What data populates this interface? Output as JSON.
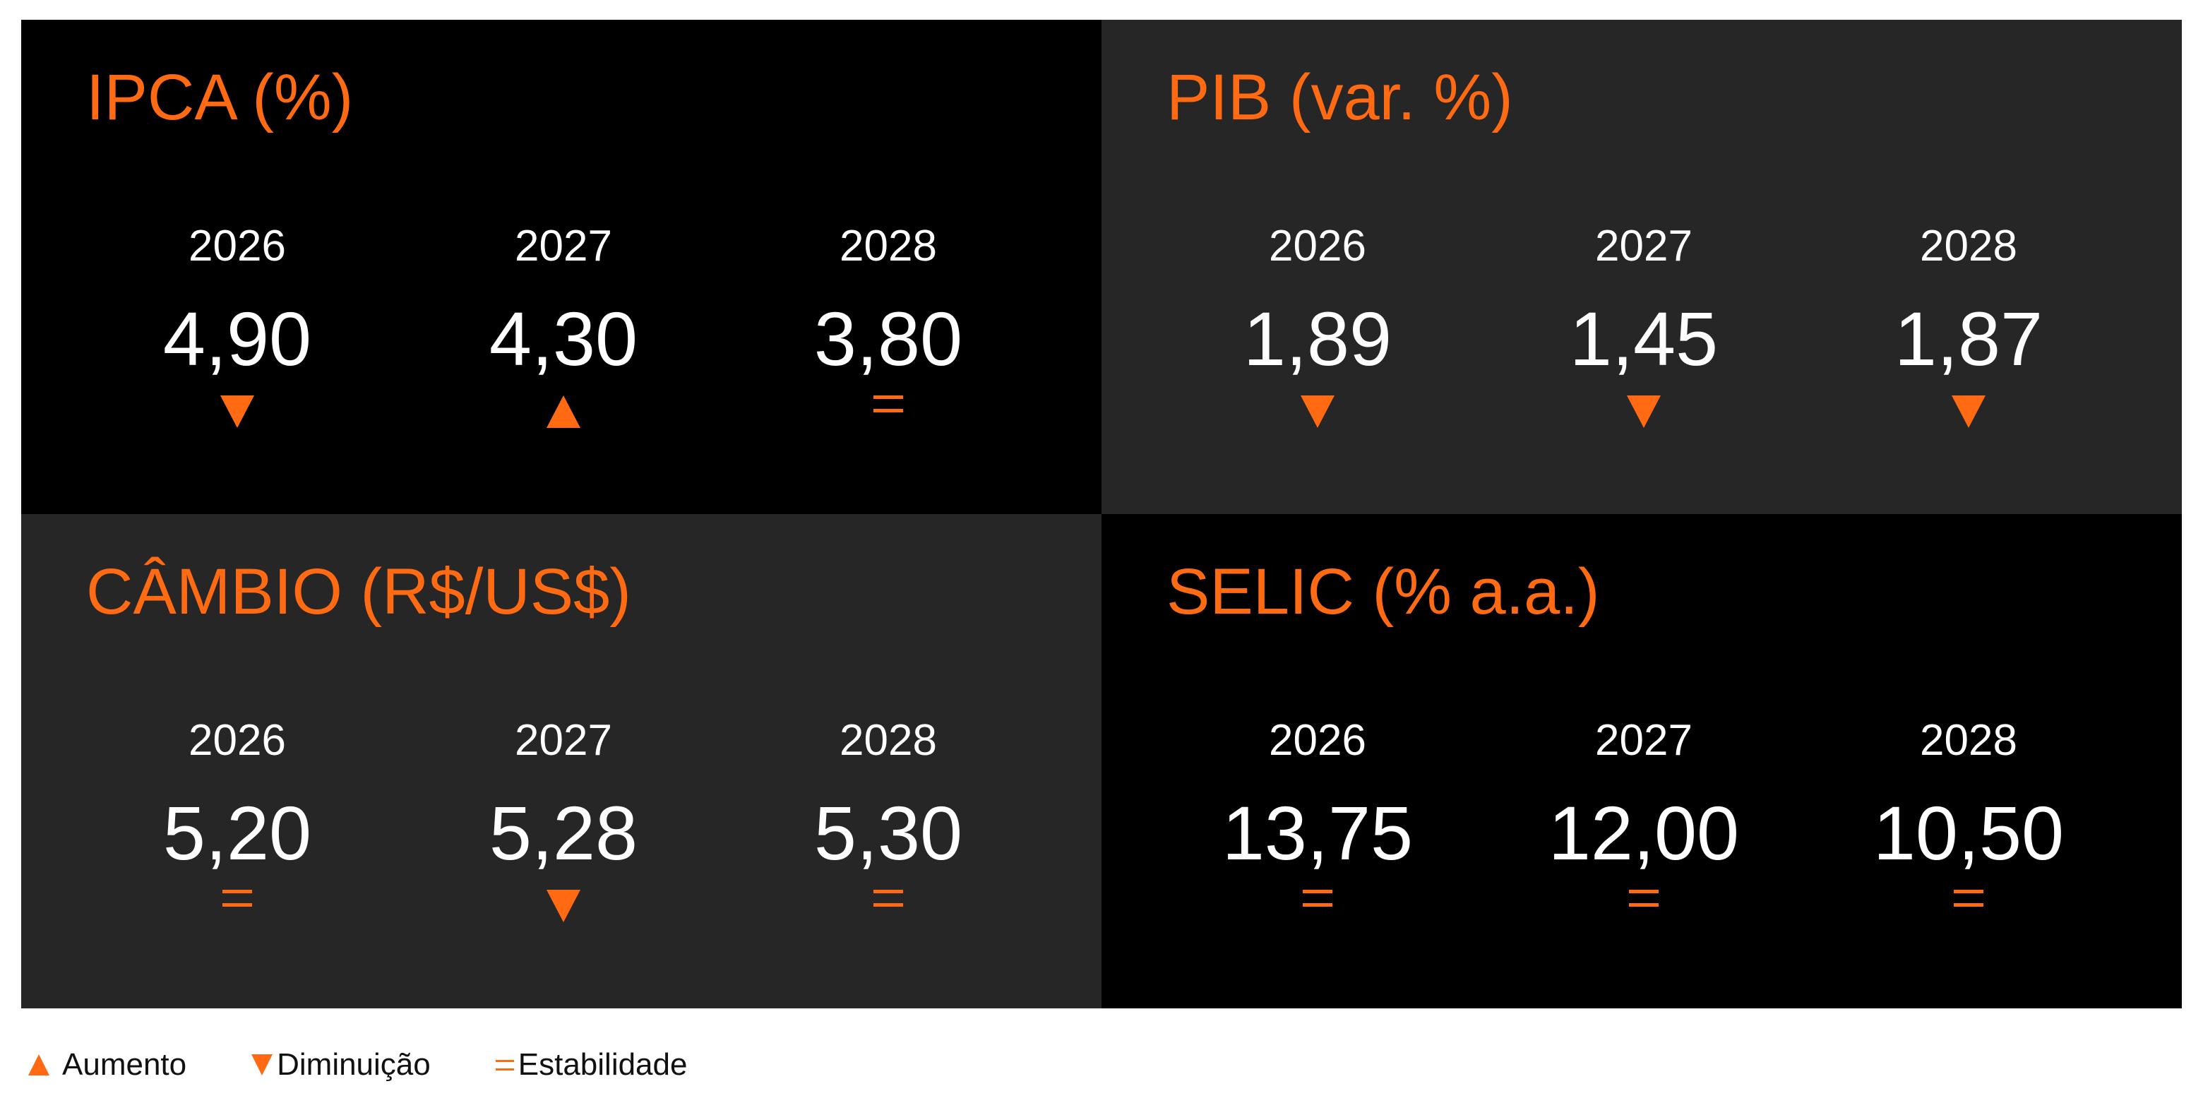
{
  "colors": {
    "accent": "#ff6a13",
    "panel_black": "#000000",
    "panel_dark": "#262626",
    "text": "#ffffff"
  },
  "panels": [
    {
      "title": "IPCA (%)",
      "columns": [
        {
          "year": "2026",
          "value": "4,90",
          "indicator": "down"
        },
        {
          "year": "2027",
          "value": "4,30",
          "indicator": "up"
        },
        {
          "year": "2028",
          "value": "3,80",
          "indicator": "equal"
        }
      ]
    },
    {
      "title": "PIB (var. %)",
      "columns": [
        {
          "year": "2026",
          "value": "1,89",
          "indicator": "down"
        },
        {
          "year": "2027",
          "value": "1,45",
          "indicator": "down"
        },
        {
          "year": "2028",
          "value": "1,87",
          "indicator": "down"
        }
      ]
    },
    {
      "title": "CÂMBIO (R$/US$)",
      "columns": [
        {
          "year": "2026",
          "value": "5,20",
          "indicator": "equal"
        },
        {
          "year": "2027",
          "value": "5,28",
          "indicator": "down"
        },
        {
          "year": "2028",
          "value": "5,30",
          "indicator": "equal"
        }
      ]
    },
    {
      "title": "SELIC (% a.a.)",
      "columns": [
        {
          "year": "2026",
          "value": "13,75",
          "indicator": "equal"
        },
        {
          "year": "2027",
          "value": "12,00",
          "indicator": "equal"
        },
        {
          "year": "2028",
          "value": "10,50",
          "indicator": "equal"
        }
      ]
    }
  ],
  "legend": {
    "up_label": "Aumento",
    "down_label": "Diminuição",
    "equal_label": "Estabilidade"
  }
}
